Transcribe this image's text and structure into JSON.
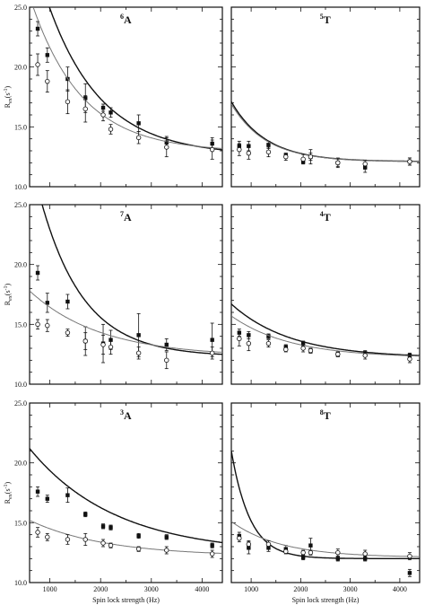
{
  "figure": {
    "xlabel": "Spin lock strength (Hz)",
    "ylabel_main": "R",
    "ylabel_sub": "ex",
    "ylabel_unit": "(s",
    "ylabel_exp": "-1",
    "ylabel_close": ")"
  },
  "chart_data": [
    {
      "type": "scatter",
      "label_sup": "6",
      "label_main": "A",
      "xlim": [
        600,
        4400
      ],
      "ylim": [
        10.0,
        25.0
      ],
      "yticks": [
        10.0,
        15.0,
        20.0,
        25.0
      ],
      "xticks": [],
      "series": [
        {
          "marker": "filled-square",
          "x": [
            760,
            950,
            1350,
            1700,
            2050,
            2200,
            2750,
            3300,
            4200
          ],
          "y": [
            23.2,
            21.0,
            19.0,
            17.4,
            16.6,
            16.2,
            15.3,
            13.7,
            13.6
          ],
          "err": [
            0.6,
            0.6,
            1.0,
            1.2,
            0.3,
            0.4,
            0.7,
            0.5,
            0.5
          ],
          "fit": {
            "a": 12.6,
            "b": 18.0,
            "c": 1050
          }
        },
        {
          "marker": "open-circle",
          "x": [
            760,
            950,
            1350,
            1700,
            2050,
            2200,
            2750,
            3300,
            4200
          ],
          "y": [
            20.2,
            18.8,
            17.1,
            16.5,
            16.0,
            14.8,
            14.1,
            13.3,
            13.1
          ],
          "err": [
            0.9,
            0.9,
            1.0,
            1.1,
            0.5,
            0.4,
            0.5,
            0.8,
            0.8
          ],
          "fit": {
            "a": 12.9,
            "b": 13.0,
            "c": 1000
          }
        }
      ]
    },
    {
      "type": "scatter",
      "label_sup": "5",
      "label_main": "T",
      "xlim": [
        600,
        4400
      ],
      "ylim": [
        10.0,
        25.0
      ],
      "yticks": [],
      "xticks": [],
      "series": [
        {
          "marker": "filled-square",
          "x": [
            760,
            950,
            1350,
            1700,
            2050,
            2200,
            2750,
            3300,
            4200
          ],
          "y": [
            13.4,
            13.4,
            13.5,
            12.6,
            12.1,
            12.5,
            12.0,
            11.6,
            12.1
          ],
          "err": [
            0.4,
            0.4,
            0.3,
            0.2,
            0.2,
            0.3,
            0.3,
            0.4,
            0.3
          ],
          "fit": {
            "a": 12.1,
            "b": 5.0,
            "c": 700
          }
        },
        {
          "marker": "open-circle",
          "x": [
            760,
            950,
            1350,
            1700,
            2050,
            2200,
            2750,
            3300,
            4200
          ],
          "y": [
            13.1,
            12.8,
            12.9,
            12.5,
            12.3,
            12.5,
            12.0,
            11.9,
            12.1
          ],
          "err": [
            0.5,
            0.5,
            0.4,
            0.3,
            0.4,
            0.6,
            0.4,
            0.3,
            0.3
          ],
          "fit": {
            "a": 12.1,
            "b": 4.8,
            "c": 700
          }
        }
      ]
    },
    {
      "type": "scatter",
      "label_sup": "7",
      "label_main": "A",
      "xlim": [
        600,
        4400
      ],
      "ylim": [
        10.0,
        25.0
      ],
      "yticks": [
        10.0,
        15.0,
        20.0,
        25.0
      ],
      "xticks": [],
      "series": [
        {
          "marker": "filled-square",
          "x": [
            760,
            950,
            1350,
            1700,
            2050,
            2200,
            2750,
            3300,
            4200
          ],
          "y": [
            19.3,
            16.8,
            16.9,
            13.6,
            13.4,
            13.7,
            14.1,
            13.3,
            13.7
          ],
          "err": [
            0.6,
            0.8,
            0.6,
            1.2,
            1.6,
            0.8,
            1.8,
            0.5,
            1.4
          ],
          "fit": {
            "a": 12.3,
            "b": 17.0,
            "c": 850
          }
        },
        {
          "marker": "open-circle",
          "x": [
            760,
            950,
            1350,
            1700,
            2050,
            2200,
            2750,
            3300,
            4200
          ],
          "y": [
            15.0,
            14.9,
            14.3,
            13.6,
            13.3,
            13.1,
            12.6,
            12.0,
            12.6
          ],
          "err": [
            0.4,
            0.5,
            0.3,
            0.7,
            0.8,
            0.6,
            0.5,
            0.7,
            0.5
          ],
          "fit": {
            "a": 12.3,
            "b": 5.5,
            "c": 1400
          }
        }
      ]
    },
    {
      "type": "scatter",
      "label_sup": "4",
      "label_main": "T",
      "xlim": [
        600,
        4400
      ],
      "ylim": [
        10.0,
        25.0
      ],
      "yticks": [],
      "xticks": [],
      "series": [
        {
          "marker": "filled-square",
          "x": [
            760,
            950,
            1350,
            1700,
            2050,
            2200,
            2750,
            3300,
            4200
          ],
          "y": [
            14.3,
            14.1,
            14.0,
            13.1,
            13.4,
            12.8,
            12.5,
            12.6,
            12.4
          ],
          "err": [
            0.3,
            0.3,
            0.2,
            0.2,
            0.2,
            0.2,
            0.2,
            0.2,
            0.2
          ],
          "fit": {
            "a": 12.2,
            "b": 4.5,
            "c": 1200
          }
        },
        {
          "marker": "open-circle",
          "x": [
            760,
            950,
            1350,
            1700,
            2050,
            2200,
            2750,
            3300,
            4200
          ],
          "y": [
            13.8,
            13.4,
            13.4,
            12.9,
            13.0,
            12.8,
            12.5,
            12.4,
            12.1
          ],
          "err": [
            0.6,
            0.6,
            0.3,
            0.2,
            0.3,
            0.2,
            0.2,
            0.3,
            0.3
          ],
          "fit": {
            "a": 12.2,
            "b": 3.5,
            "c": 1200
          }
        }
      ]
    },
    {
      "type": "scatter",
      "label_sup": "3",
      "label_main": "A",
      "xlim": [
        600,
        4400
      ],
      "ylim": [
        10.0,
        25.0
      ],
      "yticks": [
        10.0,
        15.0,
        20.0,
        25.0
      ],
      "xticks": [
        1000,
        2000,
        3000,
        4000
      ],
      "series": [
        {
          "marker": "filled-square",
          "x": [
            760,
            950,
            1350,
            1700,
            2050,
            2200,
            2750,
            3300,
            4200
          ],
          "y": [
            17.6,
            17.0,
            17.3,
            15.7,
            14.7,
            14.6,
            13.9,
            13.8,
            13.1
          ],
          "err": [
            0.4,
            0.3,
            0.6,
            0.2,
            0.2,
            0.2,
            0.2,
            0.2,
            0.2
          ],
          "fit": {
            "a": 12.4,
            "b": 8.8,
            "c": 1700
          }
        },
        {
          "marker": "open-circle",
          "x": [
            760,
            950,
            1350,
            1700,
            2050,
            2200,
            2750,
            3300,
            4200
          ],
          "y": [
            14.2,
            13.8,
            13.6,
            13.6,
            13.3,
            13.1,
            12.8,
            12.7,
            12.4
          ],
          "err": [
            0.4,
            0.3,
            0.4,
            0.5,
            0.3,
            0.2,
            0.2,
            0.3,
            0.3
          ],
          "fit": {
            "a": 12.2,
            "b": 3.0,
            "c": 1500
          }
        }
      ]
    },
    {
      "type": "scatter",
      "label_sup": "8",
      "label_main": "T",
      "xlim": [
        600,
        4400
      ],
      "ylim": [
        10.0,
        25.0
      ],
      "yticks": [],
      "xticks": [
        1000,
        2000,
        3000,
        4000
      ],
      "series": [
        {
          "marker": "filled-square",
          "x": [
            760,
            950,
            1350,
            1700,
            2050,
            2200,
            2750,
            3300,
            4200
          ],
          "y": [
            13.9,
            12.9,
            12.9,
            12.8,
            12.1,
            13.1,
            12.0,
            12.0,
            10.8
          ],
          "err": [
            0.3,
            0.5,
            0.3,
            0.3,
            0.2,
            0.6,
            0.2,
            0.2,
            0.3
          ],
          "fit": {
            "a": 12.0,
            "b": 9.0,
            "c": 380
          }
        },
        {
          "marker": "open-circle",
          "x": [
            760,
            950,
            1350,
            1700,
            2050,
            2200,
            2750,
            3300,
            4200
          ],
          "y": [
            13.7,
            13.2,
            13.2,
            12.6,
            12.5,
            12.5,
            12.5,
            12.4,
            12.2
          ],
          "err": [
            0.3,
            0.3,
            0.3,
            0.2,
            0.2,
            0.2,
            0.3,
            0.3,
            0.3
          ],
          "fit": {
            "a": 12.1,
            "b": 3.0,
            "c": 1000
          }
        }
      ]
    }
  ]
}
